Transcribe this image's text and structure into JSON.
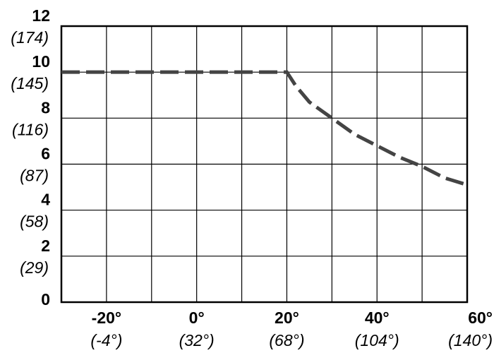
{
  "chart_data": {
    "type": "line",
    "x": [
      -30,
      20,
      22,
      25,
      30,
      35,
      40,
      45,
      50,
      55,
      60
    ],
    "series": [
      {
        "color": "#444444",
        "values": [
          10,
          10,
          9.4,
          8.7,
          8.0,
          7.3,
          6.8,
          6.3,
          5.9,
          5.4,
          5.1
        ]
      }
    ],
    "xlim": [
      -30,
      60
    ],
    "xticks": [
      {
        "value": -20,
        "label": "-20°",
        "label2": "(-4°)"
      },
      {
        "value": 0,
        "label": "0°",
        "label2": "(32°)"
      },
      {
        "value": 20,
        "label": "20°",
        "label2": "(68°)"
      },
      {
        "value": 40,
        "label": "40°",
        "label2": "(104°)"
      },
      {
        "value": 60,
        "label": "60°",
        "label2": "(140°)"
      }
    ],
    "xgrid": [
      -10,
      10,
      30,
      50
    ],
    "ylim": [
      0,
      12
    ],
    "yticks": [
      0,
      {
        "value": 2,
        "label": "2",
        "label2": "(29)"
      },
      {
        "value": 4,
        "label": "4",
        "label2": "(58)"
      },
      {
        "value": 6,
        "label": "6",
        "label2": "(87)"
      },
      {
        "value": 8,
        "label": "8",
        "label2": "(116)"
      },
      {
        "value": 10,
        "label": "10",
        "label2": "(145)"
      },
      {
        "value": 12,
        "label": "12",
        "label2": "(174)"
      }
    ],
    "grid": true,
    "dashed": true
  }
}
